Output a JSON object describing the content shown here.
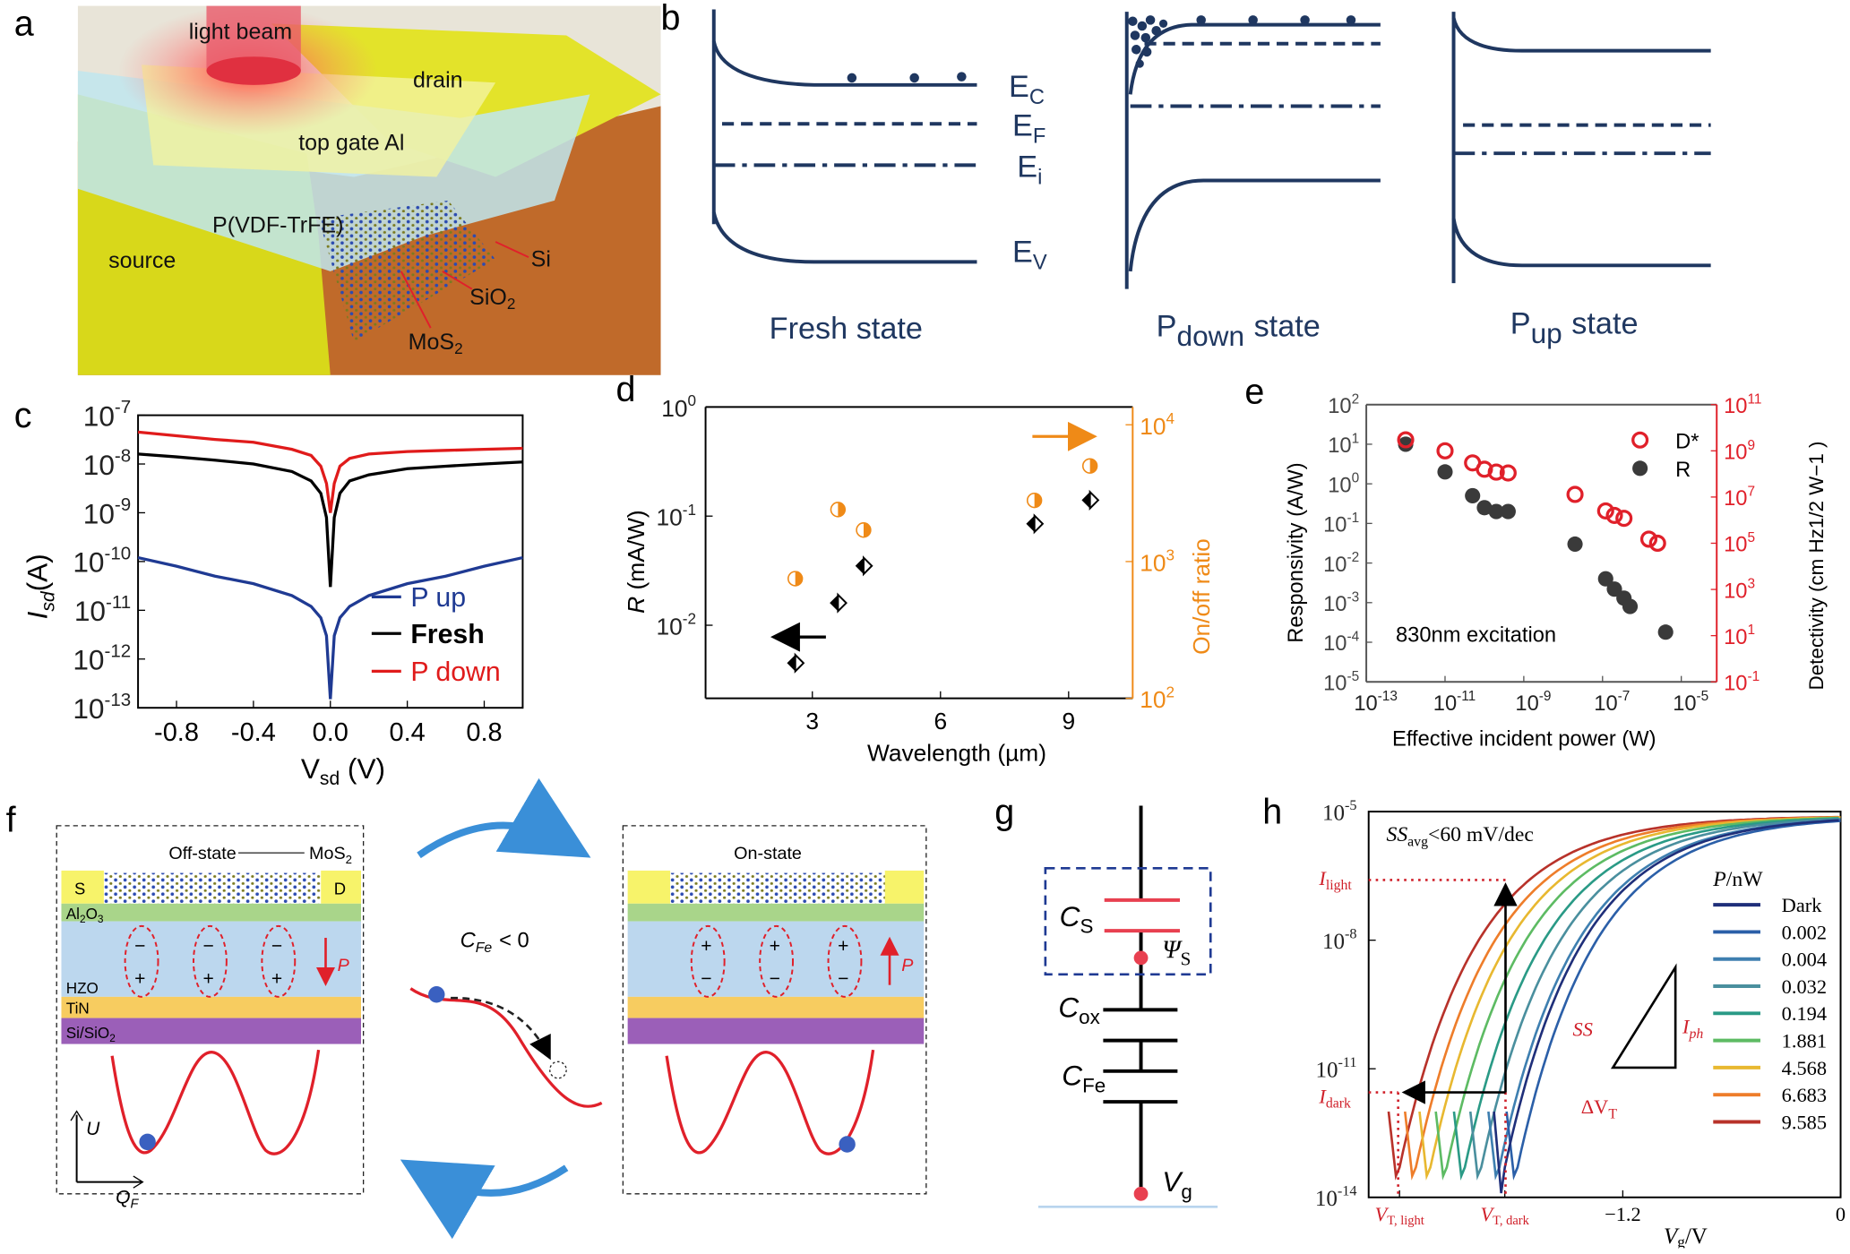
{
  "panel_labels": {
    "a": "a",
    "b": "b",
    "c": "c",
    "d": "d",
    "e": "e",
    "f": "f",
    "g": "g",
    "h": "h"
  },
  "panel_a": {
    "light_beam": "light beam",
    "drain": "drain",
    "top_gate": "top gate Al",
    "ferroelectric": "P(VDF-TrFE)",
    "source": "source",
    "si": "Si",
    "sio2": {
      "main": "SiO",
      "sub": "2"
    },
    "mos2": {
      "main": "MoS",
      "sub": "2"
    }
  },
  "panel_b": {
    "levels": {
      "ec": {
        "main": "E",
        "sub": "C"
      },
      "ef": {
        "main": "E",
        "sub": "F"
      },
      "ei": {
        "main": "E",
        "sub": "i"
      },
      "ev": {
        "main": "E",
        "sub": "V"
      }
    },
    "states": [
      {
        "main": "Fresh state"
      },
      {
        "main": "P",
        "sub": "down",
        "rest": "state"
      },
      {
        "main": "P",
        "sub": "up",
        "rest": "state"
      }
    ],
    "color": "#1f3760"
  },
  "panel_f": {
    "off_state": "Off-state",
    "on_state": "On-state",
    "mos2": {
      "main": "MoS",
      "sub": "2"
    },
    "s": "S",
    "d": "D",
    "al2o3": {
      "a": "Al",
      "b": "2",
      "c": "O",
      "d": "3"
    },
    "hzo": "HZO",
    "tin": "TiN",
    "sisio2": {
      "main": "Si/SiO",
      "sub": "2"
    },
    "p": "P",
    "minus": "−",
    "plus": "+",
    "u_axis": "U",
    "q_axis": {
      "main": "Q",
      "sub": "F"
    },
    "cfe": {
      "main": "C",
      "sub": "Fe",
      "rest": "< 0"
    }
  },
  "panel_g": {
    "cs": {
      "main": "C",
      "sub": "S"
    },
    "psis": {
      "main": "Ψ",
      "sub": "S"
    },
    "cox": {
      "main": "C",
      "sub": "ox"
    },
    "cfe": {
      "main": "C",
      "sub": "Fe"
    },
    "vg": {
      "main": "V",
      "sub": "g"
    }
  },
  "chart_data": [
    {
      "id": "c",
      "type": "line",
      "xlabel": {
        "main": "V",
        "sub": "sd",
        "rest": " (V)"
      },
      "ylabel": {
        "main": "I",
        "sub": "sd",
        "rest": "(A)"
      },
      "xlim": [
        -1,
        1
      ],
      "yscale": "log",
      "ylim_exp": [
        -13,
        -7
      ],
      "xticks": [
        {
          "v": -0.8,
          "t": "-0.8"
        },
        {
          "v": -0.4,
          "t": "-0.4"
        },
        {
          "v": 0,
          "t": "0.0"
        },
        {
          "v": 0.4,
          "t": "0.4"
        },
        {
          "v": 0.8,
          "t": "0.8"
        }
      ],
      "yticks_exp": [
        -7,
        -8,
        -9,
        -10,
        -11,
        -12,
        -13
      ],
      "x": [
        -1,
        -0.8,
        -0.6,
        -0.4,
        -0.2,
        -0.1,
        -0.05,
        -0.02,
        0,
        0.02,
        0.05,
        0.1,
        0.2,
        0.4,
        0.6,
        0.8,
        1
      ],
      "series": [
        {
          "name": "P up",
          "color": "#1f3a93",
          "bold": false,
          "y": [
            1.2e-10,
            8e-11,
            5e-11,
            3.5e-11,
            2e-11,
            1.2e-11,
            7e-12,
            3e-12,
            1.5e-13,
            3e-12,
            7e-12,
            1.2e-11,
            2e-11,
            3.5e-11,
            5e-11,
            8e-11,
            1.2e-10
          ]
        },
        {
          "name": "Fresh",
          "color": "#000000",
          "bold": true,
          "y": [
            1.6e-08,
            1.4e-08,
            1.2e-08,
            1e-08,
            7e-09,
            4.5e-09,
            2.5e-09,
            8e-10,
            3e-11,
            8e-10,
            2.5e-09,
            4.5e-09,
            6e-09,
            8e-09,
            9e-09,
            1e-08,
            1.1e-08
          ]
        },
        {
          "name": "P down",
          "color": "#e01b1b",
          "bold": false,
          "y": [
            4.5e-08,
            3.8e-08,
            3.2e-08,
            2.8e-08,
            2e-08,
            1.5e-08,
            9e-09,
            4e-09,
            1e-09,
            4e-09,
            9e-09,
            1.3e-08,
            1.6e-08,
            1.8e-08,
            1.9e-08,
            2e-08,
            2.1e-08
          ]
        }
      ]
    },
    {
      "id": "d",
      "type": "scatter",
      "xlabel": "Wavelength (µm)",
      "ylabel": {
        "main": "R",
        "rest": " (mA/W)"
      },
      "y2label": "On/off ratio",
      "xlim": [
        0.5,
        10.5
      ],
      "ylim_exp": [
        -2.67,
        0
      ],
      "y2lim_exp": [
        2,
        4.13
      ],
      "xticks": [
        3,
        6,
        9
      ],
      "yticks_exp": [
        0,
        -1,
        -2
      ],
      "y2ticks_exp": [
        4,
        3,
        2
      ],
      "series": [
        {
          "name": "R",
          "axis": "left",
          "marker": "half-diamond",
          "color": "#000000",
          "x": [
            2.6,
            3.6,
            4.2,
            8.2,
            9.5
          ],
          "y": [
            0.0045,
            0.016,
            0.035,
            0.085,
            0.14
          ]
        },
        {
          "name": "On/off ratio",
          "axis": "right",
          "marker": "half-circle",
          "color": "#ef8a17",
          "x": [
            2.6,
            3.6,
            4.2,
            8.2,
            9.5
          ],
          "y": [
            750,
            2400,
            1700,
            2800,
            5000
          ]
        }
      ]
    },
    {
      "id": "e",
      "type": "scatter",
      "xlabel": "Effective incident power (W)",
      "ylabel": "Responsivity (A/W)",
      "y2label": "Detectivity (cm Hz1/2 W−1 )",
      "annotation": "830nm excitation",
      "xscale": "log",
      "xlim_exp": [
        -13,
        -4.1
      ],
      "ylim_exp": [
        -5,
        2
      ],
      "y2lim_exp": [
        -1,
        11
      ],
      "xticks_exp": [
        -13,
        -11,
        -9,
        -7,
        -5
      ],
      "yticks_exp": [
        2,
        1,
        0,
        -1,
        -2,
        -3,
        -4,
        -5
      ],
      "y2ticks_exp": [
        11,
        9,
        7,
        5,
        3,
        1,
        -1
      ],
      "series": [
        {
          "name": "R",
          "axis": "left",
          "marker": "filled-circle",
          "color": "#3a3a3a",
          "x": [
            1e-12,
            1e-11,
            5e-11,
            1e-10,
            2e-10,
            4e-10,
            2e-08,
            1.2e-07,
            2e-07,
            3.5e-07,
            5e-07,
            4e-06
          ],
          "y": [
            10,
            2,
            0.5,
            0.25,
            0.2,
            0.2,
            0.03,
            0.004,
            0.0022,
            0.0013,
            0.0008,
            0.00018
          ]
        },
        {
          "name": "D*",
          "axis": "right",
          "marker": "open-circle",
          "color": "#e0202a",
          "x": [
            1e-12,
            1e-11,
            5e-11,
            1e-10,
            2e-10,
            4e-10,
            2e-08,
            1.2e-07,
            2e-07,
            3.5e-07,
            1.5e-06,
            2.5e-06
          ],
          "y": [
            3000000000.0,
            1000000000.0,
            300000000.0,
            160000000.0,
            120000000.0,
            110000000.0,
            13000000.0,
            2500000.0,
            1600000.0,
            1200000.0,
            150000.0,
            100000.0
          ]
        }
      ]
    },
    {
      "id": "h",
      "type": "line",
      "xlabel": {
        "main": "V",
        "sub": "g",
        "rest": "/V"
      },
      "annotation": {
        "a": "SS",
        "b": "avg",
        "c": "<60 mV/dec"
      },
      "xlim": [
        -2.6,
        0
      ],
      "ylim_exp": [
        -14,
        -5
      ],
      "yticks_exp": [
        -5,
        -8,
        -11,
        -14
      ],
      "xticks": [
        {
          "v": -2.43,
          "main": "V",
          "sub": "T, light",
          "color": "#d0202a"
        },
        {
          "v": -1.85,
          "main": "V",
          "sub": "T, dark",
          "color": "#d0202a"
        },
        {
          "v": -1.2,
          "main": "−1.2",
          "color": "#000"
        },
        {
          "v": 0,
          "main": "0",
          "color": "#000"
        }
      ],
      "legend_title": {
        "main": "P",
        "rest": "/nW"
      },
      "labels": {
        "ilight": {
          "main": "I",
          "sub": "light"
        },
        "idark": {
          "main": "I",
          "sub": "dark"
        },
        "ss": "SS",
        "iph": {
          "main": "I",
          "sub": "ph"
        },
        "dvt": {
          "main": "ΔV",
          "sub": "T"
        }
      },
      "series": [
        {
          "name": "Dark",
          "vt": -1.85,
          "color": "#1f2f7a"
        },
        {
          "name": "0.002",
          "vt": -1.78,
          "color": "#2b5fa8"
        },
        {
          "name": "0.004",
          "vt": -1.88,
          "color": "#3e7fb0"
        },
        {
          "name": "0.032",
          "vt": -1.98,
          "color": "#4a8f9e"
        },
        {
          "name": "0.194",
          "vt": -2.07,
          "color": "#2a9a86"
        },
        {
          "name": "1.881",
          "vt": -2.17,
          "color": "#5dbb63"
        },
        {
          "name": "4.568",
          "vt": -2.26,
          "color": "#e8b830"
        },
        {
          "name": "6.683",
          "vt": -2.34,
          "color": "#ee7d2a"
        },
        {
          "name": "9.585",
          "vt": -2.43,
          "color": "#b8322a"
        }
      ]
    }
  ]
}
